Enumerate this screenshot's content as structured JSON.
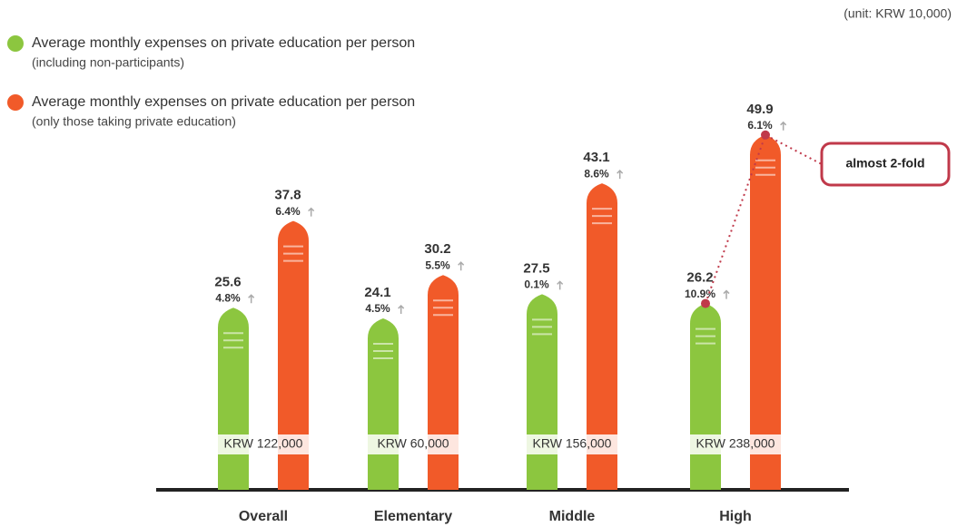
{
  "chart_data": {
    "type": "bar",
    "unit_note": "(unit: KRW 10,000)",
    "categories": [
      "Overall",
      "Elementary",
      "Middle",
      "High"
    ],
    "series": [
      {
        "name": "Average monthly expenses on private education per person",
        "note": "(including non-participants)",
        "color": "#8cc63f",
        "label_color": "#7cbf3a",
        "values": [
          25.6,
          24.1,
          27.5,
          26.2
        ],
        "changes": [
          "4.8%",
          "4.5%",
          "0.1%",
          "10.9%"
        ]
      },
      {
        "name": "Average monthly expenses on private education per person",
        "note": "(only those taking private education)",
        "color": "#f15a29",
        "label_color": "#f15a29",
        "values": [
          37.8,
          30.2,
          43.1,
          49.9
        ],
        "changes": [
          "6.4%",
          "5.5%",
          "8.6%",
          "6.1%"
        ]
      }
    ],
    "differences": [
      "KRW 122,000",
      "KRW 60,000",
      "KRW 156,000",
      "KRW 238,000"
    ],
    "annotation": "almost 2-fold",
    "ylim": [
      0,
      50
    ]
  }
}
